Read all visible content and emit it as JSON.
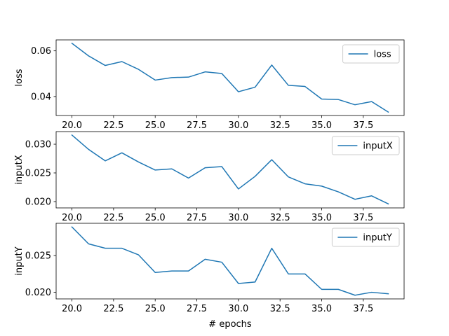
{
  "chart_data": [
    {
      "type": "line",
      "ylabel": "loss",
      "xlabel": "",
      "legend_position": "top-right",
      "xlim": [
        19.05,
        39.95
      ],
      "ylim": [
        0.0317,
        0.0648
      ],
      "x_ticks": [
        "20.0",
        "22.5",
        "25.0",
        "27.5",
        "30.0",
        "32.5",
        "35.0",
        "37.5"
      ],
      "x_tick_values": [
        20,
        22.5,
        25,
        27.5,
        30,
        32.5,
        35,
        37.5
      ],
      "y_ticks": [
        "0.04",
        "0.06"
      ],
      "y_tick_values": [
        0.04,
        0.06
      ],
      "series": [
        {
          "name": "loss",
          "color": "#1f77b4",
          "x": [
            20,
            21,
            22,
            23,
            24,
            25,
            26,
            27,
            28,
            29,
            30,
            31,
            32,
            33,
            34,
            35,
            36,
            37,
            38,
            39
          ],
          "values": [
            0.0633,
            0.0578,
            0.0536,
            0.0553,
            0.0519,
            0.0472,
            0.0483,
            0.0485,
            0.0508,
            0.0501,
            0.0421,
            0.0441,
            0.0538,
            0.0449,
            0.0444,
            0.0389,
            0.0387,
            0.0364,
            0.0378,
            0.0332
          ]
        }
      ]
    },
    {
      "type": "line",
      "ylabel": "inputX",
      "xlabel": "",
      "legend_position": "top-right",
      "xlim": [
        19.05,
        39.95
      ],
      "ylim": [
        0.0189,
        0.0322
      ],
      "x_ticks": [
        "20.0",
        "22.5",
        "25.0",
        "27.5",
        "30.0",
        "32.5",
        "35.0",
        "37.5"
      ],
      "x_tick_values": [
        20,
        22.5,
        25,
        27.5,
        30,
        32.5,
        35,
        37.5
      ],
      "y_ticks": [
        "0.020",
        "0.025",
        "0.030"
      ],
      "y_tick_values": [
        0.02,
        0.025,
        0.03
      ],
      "series": [
        {
          "name": "inputX",
          "color": "#1f77b4",
          "x": [
            20,
            21,
            22,
            23,
            24,
            25,
            26,
            27,
            28,
            29,
            30,
            31,
            32,
            33,
            34,
            35,
            36,
            37,
            38,
            39
          ],
          "values": [
            0.0316,
            0.0291,
            0.0271,
            0.0285,
            0.0269,
            0.0255,
            0.0257,
            0.0241,
            0.0259,
            0.0261,
            0.0222,
            0.0244,
            0.0273,
            0.0243,
            0.0231,
            0.0227,
            0.0217,
            0.0204,
            0.021,
            0.0196
          ]
        }
      ]
    },
    {
      "type": "line",
      "ylabel": "inputY",
      "xlabel": "# epochs",
      "legend_position": "top-right",
      "xlim": [
        19.05,
        39.95
      ],
      "ylim": [
        0.0191,
        0.0294
      ],
      "x_ticks": [
        "20.0",
        "22.5",
        "25.0",
        "27.5",
        "30.0",
        "32.5",
        "35.0",
        "37.5"
      ],
      "x_tick_values": [
        20,
        22.5,
        25,
        27.5,
        30,
        32.5,
        35,
        37.5
      ],
      "y_ticks": [
        "0.020",
        "0.025"
      ],
      "y_tick_values": [
        0.02,
        0.025
      ],
      "series": [
        {
          "name": "inputY",
          "color": "#1f77b4",
          "x": [
            20,
            21,
            22,
            23,
            24,
            25,
            26,
            27,
            28,
            29,
            30,
            31,
            32,
            33,
            34,
            35,
            36,
            37,
            38,
            39
          ],
          "values": [
            0.0289,
            0.0266,
            0.026,
            0.026,
            0.0251,
            0.0227,
            0.0229,
            0.0229,
            0.0245,
            0.0241,
            0.0212,
            0.0214,
            0.026,
            0.0225,
            0.0225,
            0.0204,
            0.0204,
            0.0196,
            0.02,
            0.0198
          ]
        }
      ]
    }
  ]
}
